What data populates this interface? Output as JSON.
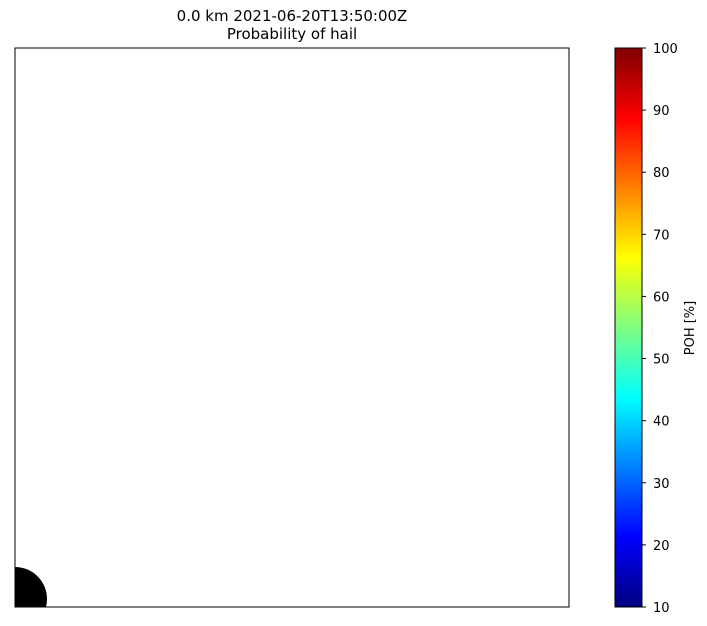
{
  "chart_data": {
    "type": "heatmap",
    "title": "0.0 km 2021-06-20T13:50:00Z",
    "subtitle": "Probability of hail",
    "xlabel": "",
    "ylabel": "",
    "grid": false,
    "colorbar": {
      "label": "POH [%]",
      "range": [
        10,
        100
      ],
      "ticks": [
        10,
        20,
        30,
        40,
        50,
        60,
        70,
        80,
        90,
        100
      ],
      "colormap": "jet"
    },
    "marker": {
      "shape": "circle",
      "color": "#000000",
      "location": "bottom-left corner"
    }
  }
}
